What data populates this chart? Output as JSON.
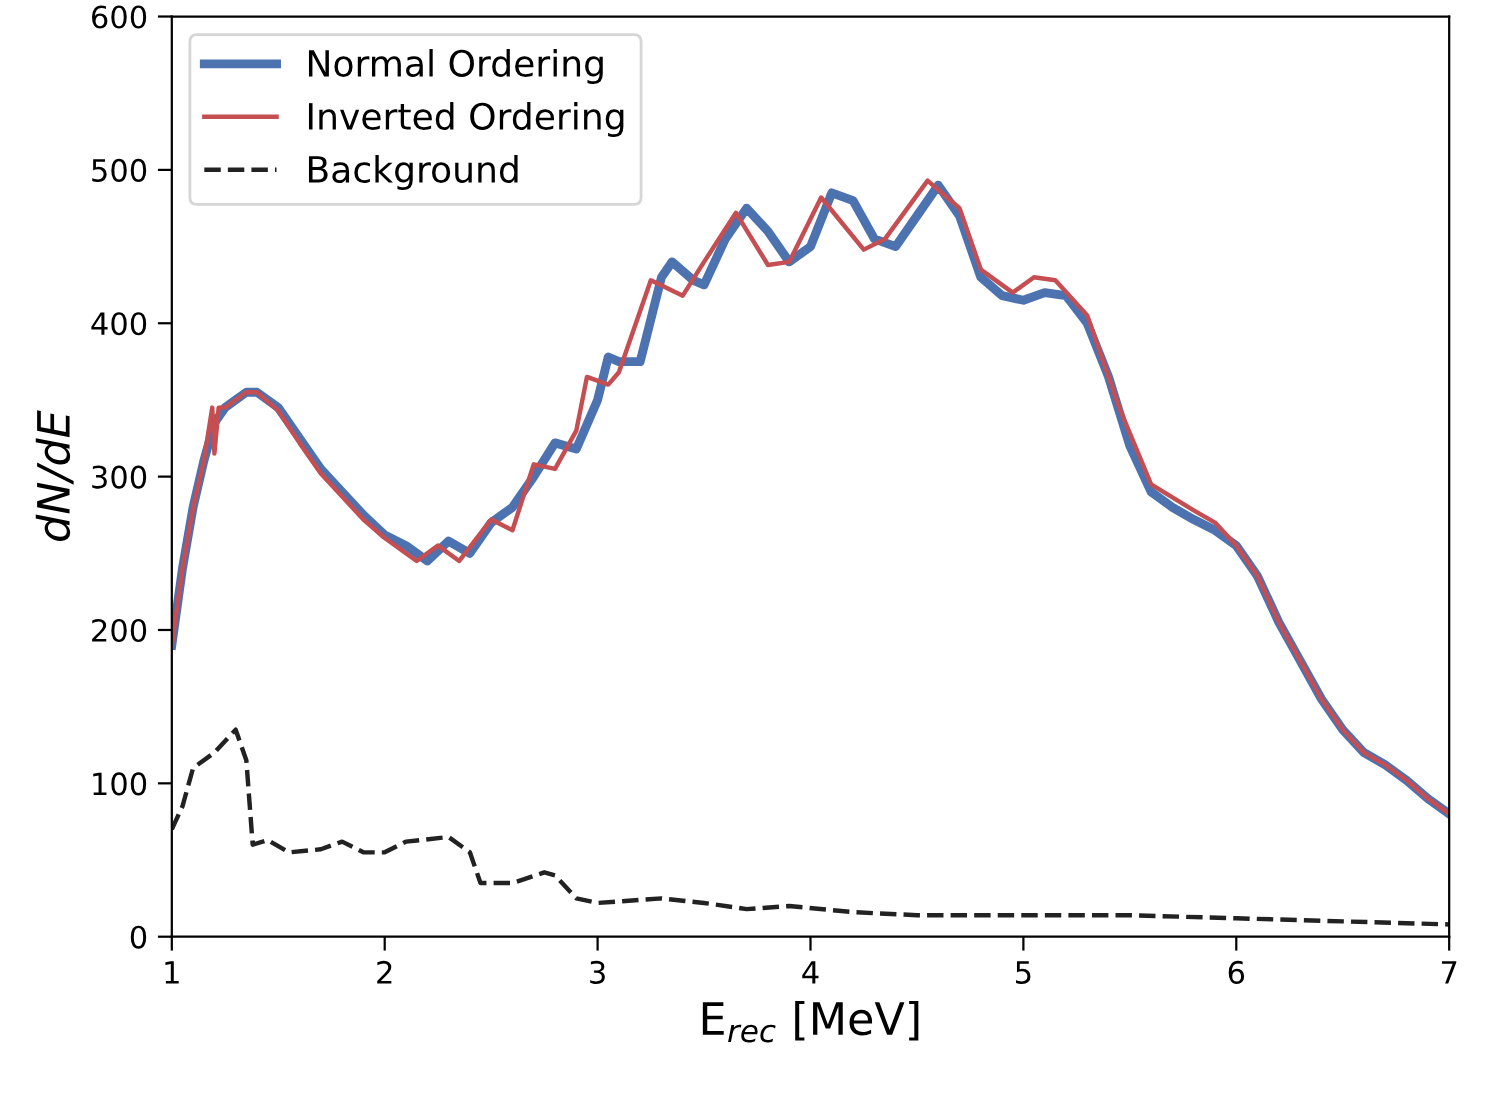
{
  "chart_data": {
    "type": "line",
    "xlabel": "E$_{rec}$ [MeV]",
    "ylabel": "dN/dE",
    "xlim": [
      1,
      7
    ],
    "ylim": [
      0,
      600
    ],
    "xticks": [
      1,
      2,
      3,
      4,
      5,
      6,
      7
    ],
    "yticks": [
      0,
      100,
      200,
      300,
      400,
      500,
      600
    ],
    "grid": false,
    "legend": "top left",
    "marker": "none",
    "series": [
      {
        "name": "Normal Ordering",
        "color": "#4c72b0",
        "line_style": "solid",
        "x": [
          1.0,
          1.05,
          1.1,
          1.15,
          1.2,
          1.25,
          1.3,
          1.35,
          1.4,
          1.5,
          1.6,
          1.7,
          1.8,
          1.9,
          2.0,
          2.1,
          2.2,
          2.3,
          2.4,
          2.5,
          2.6,
          2.7,
          2.8,
          2.9,
          3.0,
          3.05,
          3.1,
          3.2,
          3.3,
          3.35,
          3.45,
          3.5,
          3.6,
          3.7,
          3.8,
          3.9,
          4.0,
          4.1,
          4.2,
          4.3,
          4.4,
          4.5,
          4.6,
          4.7,
          4.8,
          4.9,
          5.0,
          5.1,
          5.2,
          5.3,
          5.4,
          5.5,
          5.6,
          5.7,
          5.8,
          5.9,
          6.0,
          6.1,
          6.2,
          6.3,
          6.4,
          6.5,
          6.6,
          6.7,
          6.8,
          6.9,
          7.0
        ],
        "values": [
          190,
          240,
          280,
          310,
          335,
          345,
          350,
          355,
          355,
          345,
          325,
          305,
          290,
          275,
          262,
          255,
          245,
          258,
          250,
          270,
          280,
          300,
          322,
          318,
          350,
          378,
          375,
          375,
          430,
          440,
          428,
          425,
          455,
          475,
          460,
          440,
          450,
          485,
          480,
          455,
          450,
          470,
          490,
          470,
          430,
          418,
          415,
          420,
          418,
          400,
          365,
          320,
          290,
          280,
          272,
          265,
          255,
          235,
          205,
          180,
          155,
          135,
          120,
          112,
          102,
          90,
          80
        ]
      },
      {
        "name": "Inverted Ordering",
        "color": "#c44e52",
        "line_style": "solid",
        "x": [
          1.0,
          1.05,
          1.1,
          1.15,
          1.19,
          1.2,
          1.22,
          1.25,
          1.3,
          1.35,
          1.4,
          1.5,
          1.6,
          1.7,
          1.8,
          1.9,
          2.0,
          2.15,
          2.25,
          2.35,
          2.5,
          2.6,
          2.7,
          2.8,
          2.9,
          2.95,
          3.05,
          3.1,
          3.25,
          3.4,
          3.5,
          3.65,
          3.8,
          3.9,
          4.05,
          4.25,
          4.35,
          4.55,
          4.7,
          4.8,
          4.95,
          5.05,
          5.15,
          5.3,
          5.45,
          5.6,
          5.8,
          5.9,
          6.0,
          6.1,
          6.2,
          6.3,
          6.4,
          6.5,
          6.6,
          6.7,
          6.8,
          6.9,
          7.0
        ],
        "values": [
          190,
          240,
          280,
          310,
          345,
          315,
          345,
          345,
          350,
          355,
          355,
          343,
          322,
          302,
          287,
          272,
          260,
          245,
          255,
          245,
          272,
          265,
          308,
          305,
          330,
          365,
          360,
          368,
          428,
          418,
          440,
          472,
          438,
          440,
          482,
          448,
          455,
          493,
          475,
          435,
          420,
          430,
          428,
          405,
          345,
          295,
          278,
          270,
          255,
          235,
          205,
          180,
          155,
          135,
          120,
          112,
          102,
          90,
          80
        ]
      },
      {
        "name": "Background",
        "color": "#222222",
        "line_style": "dashed",
        "x": [
          1.0,
          1.05,
          1.1,
          1.2,
          1.3,
          1.35,
          1.38,
          1.45,
          1.55,
          1.7,
          1.8,
          1.9,
          2.0,
          2.1,
          2.3,
          2.4,
          2.45,
          2.6,
          2.75,
          2.8,
          2.9,
          3.0,
          3.3,
          3.5,
          3.7,
          3.9,
          4.2,
          4.5,
          5.0,
          5.5,
          6.0,
          6.5,
          7.0
        ],
        "values": [
          70,
          85,
          110,
          120,
          135,
          115,
          60,
          63,
          55,
          57,
          62,
          55,
          55,
          62,
          65,
          55,
          35,
          35,
          42,
          40,
          25,
          22,
          25,
          22,
          18,
          20,
          16,
          14,
          14,
          14,
          12,
          10,
          8
        ]
      }
    ]
  }
}
